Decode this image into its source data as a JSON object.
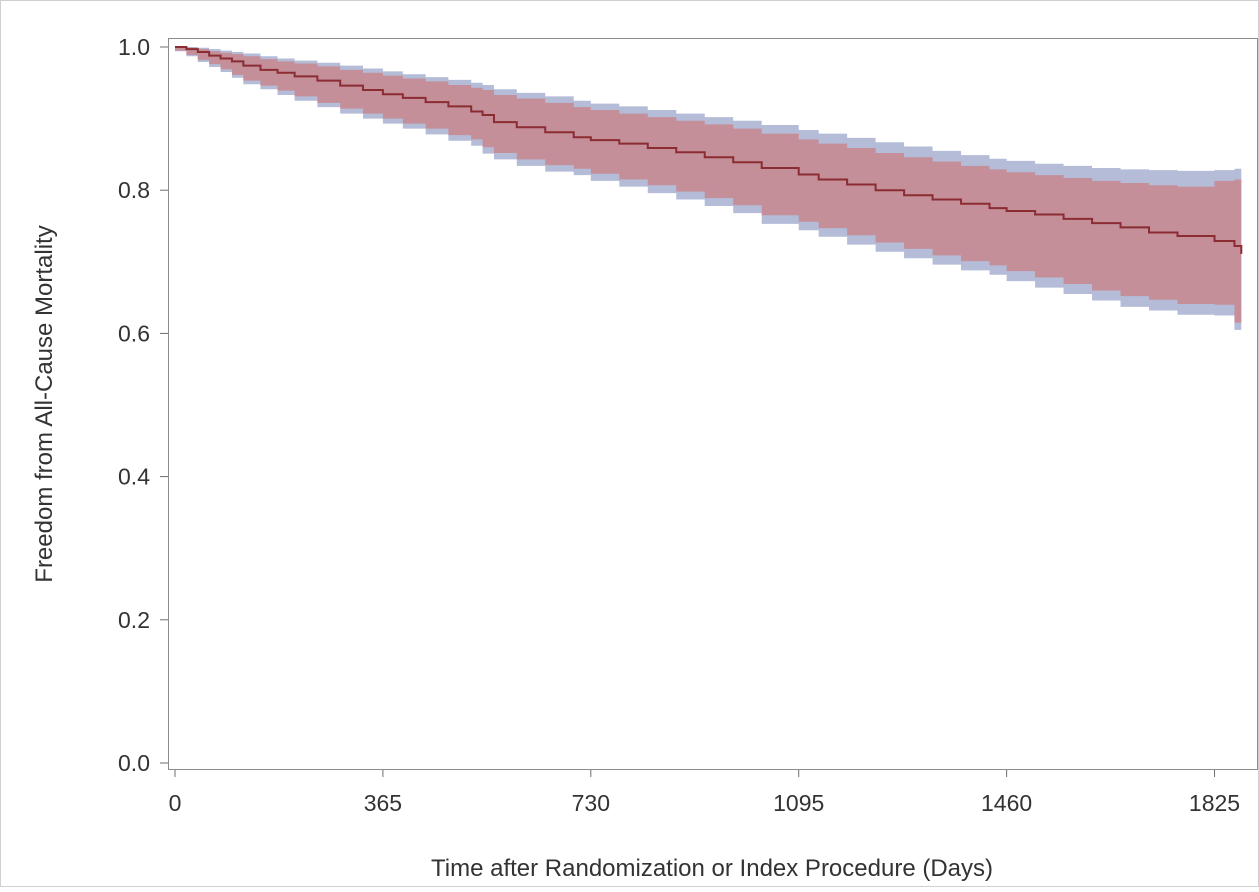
{
  "chart_data": {
    "type": "line",
    "xlabel": "Time after Randomization or Index Procedure (Days)",
    "ylabel": "Freedom from All-Cause Mortality",
    "xlim": [
      0,
      1875
    ],
    "ylim": [
      0,
      1.0
    ],
    "x_ticks": [
      0,
      365,
      730,
      1095,
      1460,
      1825
    ],
    "x_tick_labels": [
      "0",
      "365",
      "730",
      "1095",
      "1460",
      "1825"
    ],
    "y_ticks": [
      0.0,
      0.2,
      0.4,
      0.6,
      0.8,
      1.0
    ],
    "y_tick_labels": [
      "0.0",
      "0.2",
      "0.4",
      "0.6",
      "0.8",
      "1.0"
    ],
    "grid": false,
    "legend": "none",
    "colors": {
      "line": "#8b2c32",
      "inner_band": "#c48f99",
      "outer_band": "#b4bcd8",
      "axis": "#8c8c8c"
    },
    "series": [
      {
        "x": [
          0,
          20,
          40,
          60,
          80,
          100,
          120,
          150,
          180,
          210,
          250,
          290,
          330,
          365,
          400,
          440,
          480,
          520,
          540,
          560,
          600,
          650,
          700,
          730,
          780,
          830,
          880,
          930,
          980,
          1030,
          1095,
          1130,
          1180,
          1230,
          1280,
          1330,
          1380,
          1430,
          1460,
          1510,
          1560,
          1610,
          1660,
          1710,
          1760,
          1825,
          1860,
          1872
        ],
        "y": [
          1.0,
          0.997,
          0.993,
          0.988,
          0.984,
          0.98,
          0.974,
          0.968,
          0.964,
          0.959,
          0.953,
          0.946,
          0.94,
          0.934,
          0.929,
          0.923,
          0.917,
          0.91,
          0.905,
          0.895,
          0.888,
          0.881,
          0.874,
          0.87,
          0.865,
          0.859,
          0.853,
          0.846,
          0.839,
          0.831,
          0.822,
          0.815,
          0.808,
          0.8,
          0.793,
          0.787,
          0.781,
          0.775,
          0.771,
          0.766,
          0.76,
          0.754,
          0.748,
          0.741,
          0.736,
          0.729,
          0.722,
          0.711
        ]
      }
    ],
    "inner_band": {
      "lower": [
        1.0,
        0.995,
        0.989,
        0.982,
        0.976,
        0.969,
        0.961,
        0.953,
        0.946,
        0.939,
        0.931,
        0.922,
        0.914,
        0.907,
        0.9,
        0.893,
        0.886,
        0.877,
        0.871,
        0.86,
        0.852,
        0.843,
        0.835,
        0.83,
        0.823,
        0.815,
        0.807,
        0.798,
        0.789,
        0.779,
        0.765,
        0.756,
        0.747,
        0.737,
        0.727,
        0.718,
        0.709,
        0.701,
        0.695,
        0.687,
        0.678,
        0.669,
        0.66,
        0.652,
        0.647,
        0.641,
        0.64,
        0.615
      ],
      "upper": [
        1.0,
        0.999,
        0.997,
        0.994,
        0.992,
        0.99,
        0.987,
        0.983,
        0.98,
        0.977,
        0.973,
        0.968,
        0.964,
        0.96,
        0.956,
        0.952,
        0.947,
        0.943,
        0.94,
        0.933,
        0.928,
        0.922,
        0.916,
        0.912,
        0.907,
        0.902,
        0.897,
        0.892,
        0.886,
        0.879,
        0.871,
        0.865,
        0.859,
        0.852,
        0.846,
        0.84,
        0.834,
        0.829,
        0.825,
        0.821,
        0.817,
        0.813,
        0.81,
        0.807,
        0.805,
        0.813,
        0.815,
        0.815
      ]
    },
    "outer_band": {
      "lower": [
        1.0,
        0.994,
        0.987,
        0.979,
        0.972,
        0.965,
        0.957,
        0.948,
        0.941,
        0.933,
        0.925,
        0.916,
        0.907,
        0.9,
        0.893,
        0.886,
        0.878,
        0.869,
        0.862,
        0.851,
        0.843,
        0.834,
        0.826,
        0.821,
        0.813,
        0.805,
        0.796,
        0.787,
        0.778,
        0.768,
        0.753,
        0.744,
        0.735,
        0.724,
        0.714,
        0.705,
        0.696,
        0.688,
        0.682,
        0.673,
        0.664,
        0.655,
        0.646,
        0.637,
        0.632,
        0.626,
        0.625,
        0.605
      ],
      "upper": [
        1.0,
        1.0,
        0.999,
        0.997,
        0.995,
        0.993,
        0.991,
        0.987,
        0.984,
        0.981,
        0.978,
        0.974,
        0.97,
        0.966,
        0.962,
        0.958,
        0.954,
        0.95,
        0.947,
        0.941,
        0.936,
        0.931,
        0.925,
        0.921,
        0.917,
        0.912,
        0.907,
        0.902,
        0.897,
        0.891,
        0.884,
        0.879,
        0.873,
        0.867,
        0.861,
        0.855,
        0.849,
        0.844,
        0.841,
        0.837,
        0.834,
        0.831,
        0.829,
        0.828,
        0.827,
        0.828,
        0.83,
        0.83
      ]
    }
  }
}
